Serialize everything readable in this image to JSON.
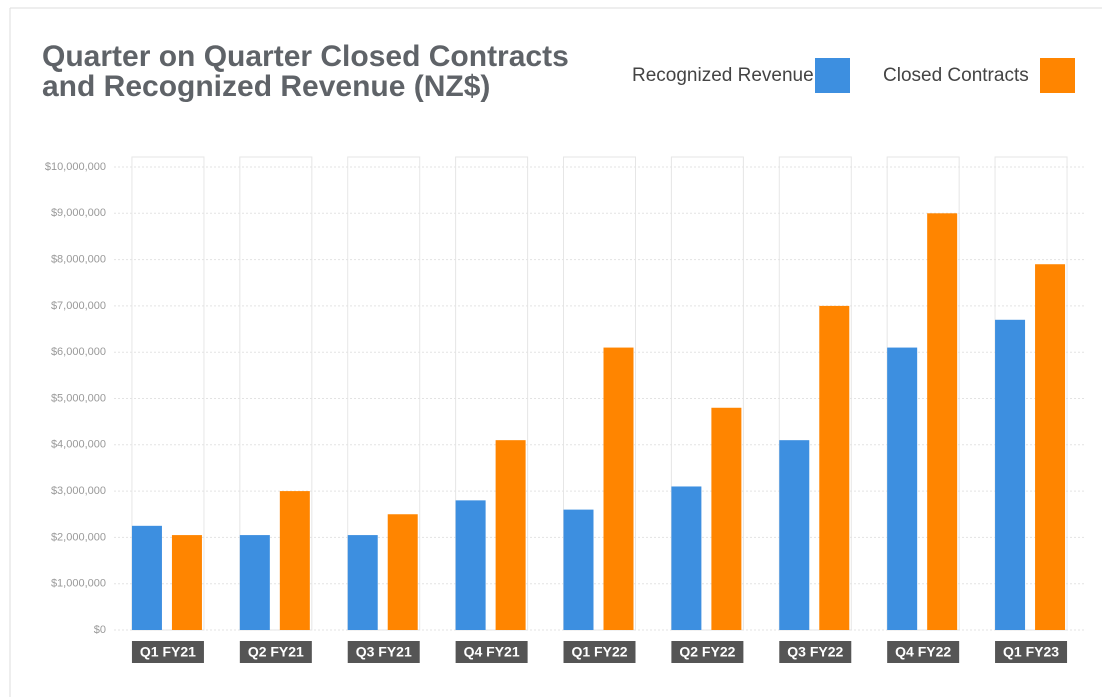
{
  "chart_data": {
    "type": "bar",
    "title": [
      "Quarter on Quarter Closed Contracts",
      "and Recognized Revenue (NZ$)"
    ],
    "categories": [
      "Q1 FY21",
      "Q2 FY21",
      "Q3 FY21",
      "Q4 FY21",
      "Q1 FY22",
      "Q2 FY22",
      "Q3 FY22",
      "Q4 FY22",
      "Q1 FY23"
    ],
    "series": [
      {
        "name": "Recognized Revenue",
        "color": "#3d8fe0",
        "values": [
          2250000,
          2050000,
          2050000,
          2800000,
          2600000,
          3100000,
          4100000,
          6100000,
          6700000
        ]
      },
      {
        "name": "Closed Contracts",
        "color": "#ff8500",
        "values": [
          2050000,
          3000000,
          2500000,
          4100000,
          6100000,
          4800000,
          7000000,
          9000000,
          7900000
        ]
      }
    ],
    "ylim": [
      0,
      10000000
    ],
    "yticks": [
      {
        "value": 0,
        "label": "$0"
      },
      {
        "value": 1000000,
        "label": "$1,000,000"
      },
      {
        "value": 2000000,
        "label": "$2,000,000"
      },
      {
        "value": 3000000,
        "label": "$3,000,000"
      },
      {
        "value": 4000000,
        "label": "$4,000,000"
      },
      {
        "value": 5000000,
        "label": "$5,000,000"
      },
      {
        "value": 6000000,
        "label": "$6,000,000"
      },
      {
        "value": 7000000,
        "label": "$7,000,000"
      },
      {
        "value": 8000000,
        "label": "$8,000,000"
      },
      {
        "value": 9000000,
        "label": "$9,000,000"
      },
      {
        "value": 10000000,
        "label": "$10,000,000"
      }
    ],
    "grid": true,
    "legend": "top-right"
  }
}
